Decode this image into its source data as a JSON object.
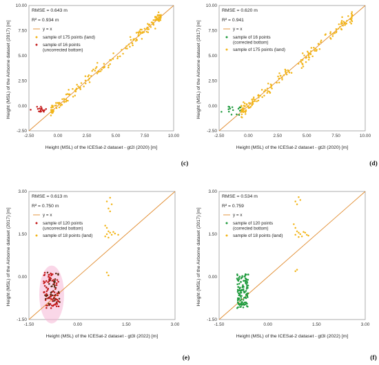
{
  "colors": {
    "land": "#f2b519",
    "line": "#e0892a",
    "uncorrected": "#c41a1a",
    "corrected": "#1e9a3c",
    "uncorrected_dark": "#5a2a10",
    "pink_band": "#f6b6d6"
  },
  "chart_data": [
    {
      "panel": "(c)",
      "type": "scatter",
      "xlabel": "Height (MSL) of the ICESat-2 dataset - gt2l (2020) [m]",
      "ylabel": "Height (MSL) of the Airborne dataset (2017) [m]",
      "xlim": [
        -2.5,
        10.0
      ],
      "ylim": [
        -2.5,
        10.0
      ],
      "xticks": [
        "-2.50",
        "0.00",
        "2.50",
        "5.00",
        "7.50",
        "10.00"
      ],
      "yticks": [
        "-2.50",
        "0.00",
        "2.50",
        "5.00",
        "7.50",
        "10.00"
      ],
      "grid": false,
      "legend_position": "top-left",
      "stats": [
        "RMSE = 0.643 m",
        "R² = 0.934 m"
      ],
      "reference_line": {
        "name": "y = x",
        "from": [
          -2.5,
          -2.5
        ],
        "to": [
          10.0,
          10.0
        ]
      },
      "series": [
        {
          "name": "sample of 175 points (land)",
          "role": "land",
          "count": 175,
          "x_range": [
            -0.6,
            8.9
          ],
          "offset_sd": 0.45
        },
        {
          "name": "sample of 16 points (uncorrected bottom)",
          "role": "uncorrected",
          "count": 16,
          "x_range": [
            -1.8,
            -1.0
          ],
          "y_range": [
            -0.6,
            -0.05
          ]
        }
      ],
      "extra_points": [
        [
          -2.35,
          -0.4
        ]
      ]
    },
    {
      "panel": "(d)",
      "type": "scatter",
      "xlabel": "Height (MSL) of the ICESat-2 dataset - gt2l (2020) [m]",
      "ylabel": "Height (MSL) of the Airborne dataset (2017) [m]",
      "xlim": [
        -2.5,
        10.0
      ],
      "ylim": [
        -2.5,
        10.0
      ],
      "xticks": [
        "-2.50",
        "0.00",
        "2.50",
        "5.00",
        "7.50",
        "10.00"
      ],
      "yticks": [
        "-2.50",
        "0.00",
        "2.50",
        "5.00",
        "7.50",
        "10.00"
      ],
      "grid": false,
      "legend_position": "top-left",
      "stats": [
        "RMSE = 0.620 m",
        "R² = 0.941"
      ],
      "reference_line": {
        "name": "y = x",
        "from": [
          -2.5,
          -2.5
        ],
        "to": [
          10.0,
          10.0
        ]
      },
      "series": [
        {
          "name": "sample of 16 points (corrected bottom)",
          "role": "corrected",
          "count": 16,
          "x_range": [
            -1.8,
            -0.6
          ],
          "y_range": [
            -1.0,
            -0.05
          ]
        },
        {
          "name": "sample of 175 points (land)",
          "role": "land",
          "count": 175,
          "x_range": [
            -0.6,
            8.9
          ],
          "offset_sd": 0.45
        }
      ],
      "extra_points": [
        [
          -2.3,
          -0.6
        ]
      ]
    },
    {
      "panel": "(e)",
      "type": "scatter",
      "xlabel": "Height (MSL) of the ICESat-2 dataset - gt3l (2022) [m]",
      "ylabel": "Height (MSL) of the Airborne dataset (2017) [m]",
      "xlim": [
        -1.5,
        3.0
      ],
      "ylim": [
        -1.5,
        3.0
      ],
      "xticks": [
        "-1.50",
        "0.00",
        "1.50",
        "3.00"
      ],
      "yticks": [
        "-1.50",
        "0.00",
        "1.50",
        "3.00"
      ],
      "grid": false,
      "legend_position": "top-left",
      "stats": [
        "RMSE = 0.613 m",
        "R² = 0.750 m"
      ],
      "reference_line": {
        "name": "y = x",
        "from": [
          -1.5,
          -1.5
        ],
        "to": [
          3.0,
          3.0
        ]
      },
      "series": [
        {
          "name": "sample of 120 points (uncorrected bottom)",
          "role": "uncorrected",
          "count": 120,
          "x_range": [
            -1.05,
            -0.55
          ],
          "y_range": [
            -1.1,
            0.15
          ]
        },
        {
          "name": "sample of 18 points (land)",
          "role": "land",
          "count": 18,
          "points": [
            [
              0.9,
              2.65
            ],
            [
              1.0,
              2.78
            ],
            [
              1.05,
              2.55
            ],
            [
              0.95,
              2.4
            ],
            [
              1.0,
              2.3
            ],
            [
              0.85,
              1.8
            ],
            [
              0.9,
              1.72
            ],
            [
              0.95,
              1.6
            ],
            [
              1.0,
              1.55
            ],
            [
              0.9,
              1.5
            ],
            [
              1.05,
              1.48
            ],
            [
              0.85,
              1.42
            ],
            [
              1.15,
              1.52
            ],
            [
              1.25,
              1.48
            ],
            [
              0.95,
              1.38
            ],
            [
              1.1,
              1.58
            ],
            [
              0.9,
              0.15
            ],
            [
              0.95,
              0.05
            ]
          ]
        }
      ]
    },
    {
      "panel": "(f)",
      "type": "scatter",
      "xlabel": "Height (MSL) of the ICESat-2 dataset - gt3l (2022) [m]",
      "ylabel": "Height (MSL) of the Airborne dataset (2017) [m]",
      "xlim": [
        -1.5,
        3.0
      ],
      "ylim": [
        -1.5,
        3.0
      ],
      "xticks": [
        "-1.50",
        "0.00",
        "1.50",
        "3.00"
      ],
      "yticks": [
        "-1.50",
        "0.00",
        "1.50",
        "3.00"
      ],
      "grid": false,
      "legend_position": "top-left",
      "stats": [
        "RMSE = 0.534 m",
        "R² = 0.759"
      ],
      "reference_line": {
        "name": "y = x",
        "from": [
          -1.5,
          -1.5
        ],
        "to": [
          3.0,
          3.0
        ]
      },
      "series": [
        {
          "name": "sample of 120 points (corrected bottom)",
          "role": "corrected",
          "count": 120,
          "x_range": [
            -0.95,
            -0.6
          ],
          "y_range": [
            -1.1,
            0.1
          ]
        },
        {
          "name": "sample of 18 points (land)",
          "role": "land",
          "count": 18,
          "points": [
            [
              0.85,
              2.65
            ],
            [
              0.95,
              2.8
            ],
            [
              1.0,
              2.7
            ],
            [
              0.9,
              2.55
            ],
            [
              0.8,
              1.85
            ],
            [
              0.85,
              1.72
            ],
            [
              0.9,
              1.6
            ],
            [
              0.95,
              1.55
            ],
            [
              1.0,
              1.5
            ],
            [
              0.85,
              1.48
            ],
            [
              1.05,
              1.42
            ],
            [
              1.15,
              1.55
            ],
            [
              1.2,
              1.48
            ],
            [
              1.25,
              1.45
            ],
            [
              0.95,
              1.4
            ],
            [
              1.1,
              1.58
            ],
            [
              0.9,
              0.25
            ],
            [
              0.85,
              0.2
            ]
          ]
        }
      ]
    }
  ]
}
